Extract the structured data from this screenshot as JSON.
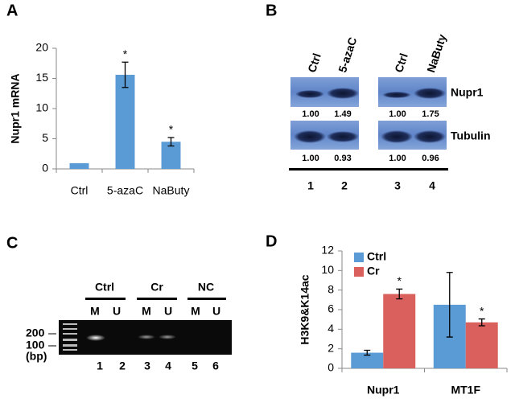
{
  "panel_labels": [
    "A",
    "B",
    "C",
    "D"
  ],
  "chart_data": [
    {
      "type": "bar",
      "ylabel": "Nupr1 mRNA",
      "categories": [
        "Ctrl",
        "5-azaC",
        "NaButy"
      ],
      "values": [
        0.95,
        15.6,
        4.5
      ],
      "errors": [
        null,
        2.1,
        0.7
      ],
      "markers": [
        null,
        "*",
        "*"
      ],
      "color": "#5b9bd5",
      "ylim": [
        0,
        20
      ],
      "yticks": [
        0,
        5,
        10,
        15,
        20
      ]
    },
    {
      "type": "bar",
      "ylabel": "H3K9&K14ac",
      "categories": [
        "Nupr1",
        "MT1F"
      ],
      "series": [
        {
          "name": "Ctrl",
          "color": "#5b9bd5",
          "values": [
            1.6,
            6.5
          ],
          "errors": [
            0.25,
            3.3
          ],
          "markers": [
            null,
            null
          ]
        },
        {
          "name": "Cr",
          "color": "#d9605c",
          "values": [
            7.6,
            4.7
          ],
          "errors": [
            0.5,
            0.35
          ],
          "markers": [
            "*",
            "*"
          ]
        }
      ],
      "ylim": [
        0,
        12
      ],
      "yticks": [
        0,
        2,
        4,
        6,
        8,
        10,
        12
      ],
      "legend": "upper left"
    }
  ],
  "blot": {
    "lanes": [
      "Ctrl",
      "5-azaC",
      "Ctrl",
      "NaButy"
    ],
    "rows": [
      {
        "label": "Nupr1",
        "values": [
          "1.00",
          "1.49",
          "1.00",
          "1.75"
        ]
      },
      {
        "label": "Tubulin",
        "values": [
          "1.00",
          "0.93",
          "1.00",
          "0.96"
        ]
      }
    ],
    "lane_numbers": [
      "1",
      "2",
      "3",
      "4"
    ]
  },
  "gel": {
    "groups": [
      "Ctrl",
      "Cr",
      "NC"
    ],
    "lanes": [
      "M",
      "U",
      "M",
      "U",
      "M",
      "U"
    ],
    "lane_numbers": [
      "1",
      "2",
      "3",
      "4",
      "5",
      "6"
    ],
    "size_labels": [
      "200",
      "100",
      "(bp)"
    ]
  }
}
